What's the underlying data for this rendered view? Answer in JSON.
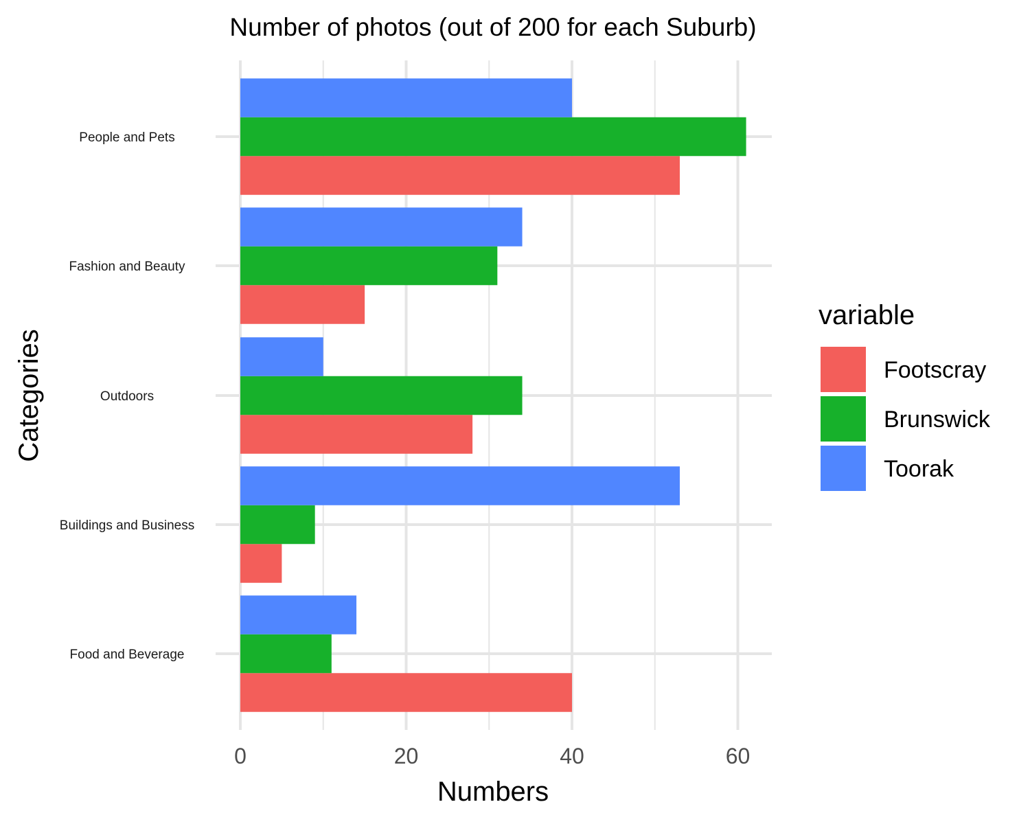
{
  "chart_data": {
    "type": "bar",
    "orientation": "horizontal",
    "title": "Number of photos (out of 200 for each Suburb)",
    "xlabel": "Numbers",
    "ylabel": "Categories",
    "categories": [
      "People and Pets",
      "Fashion and Beauty",
      "Outdoors",
      "Buildings and Business",
      "Food and Beverage"
    ],
    "series": [
      {
        "name": "Footscray",
        "color": "#F35E5A",
        "values": [
          53,
          15,
          28,
          5,
          40
        ]
      },
      {
        "name": "Brunswick",
        "color": "#17B12B",
        "values": [
          61,
          31,
          34,
          9,
          11
        ]
      },
      {
        "name": "Toorak",
        "color": "#5086FF",
        "values": [
          40,
          34,
          10,
          53,
          14
        ]
      }
    ],
    "xlim": [
      0,
      64
    ],
    "xticks": [
      0,
      20,
      40,
      60
    ],
    "grid": true,
    "legend": {
      "title": "variable",
      "placement": "right"
    }
  }
}
